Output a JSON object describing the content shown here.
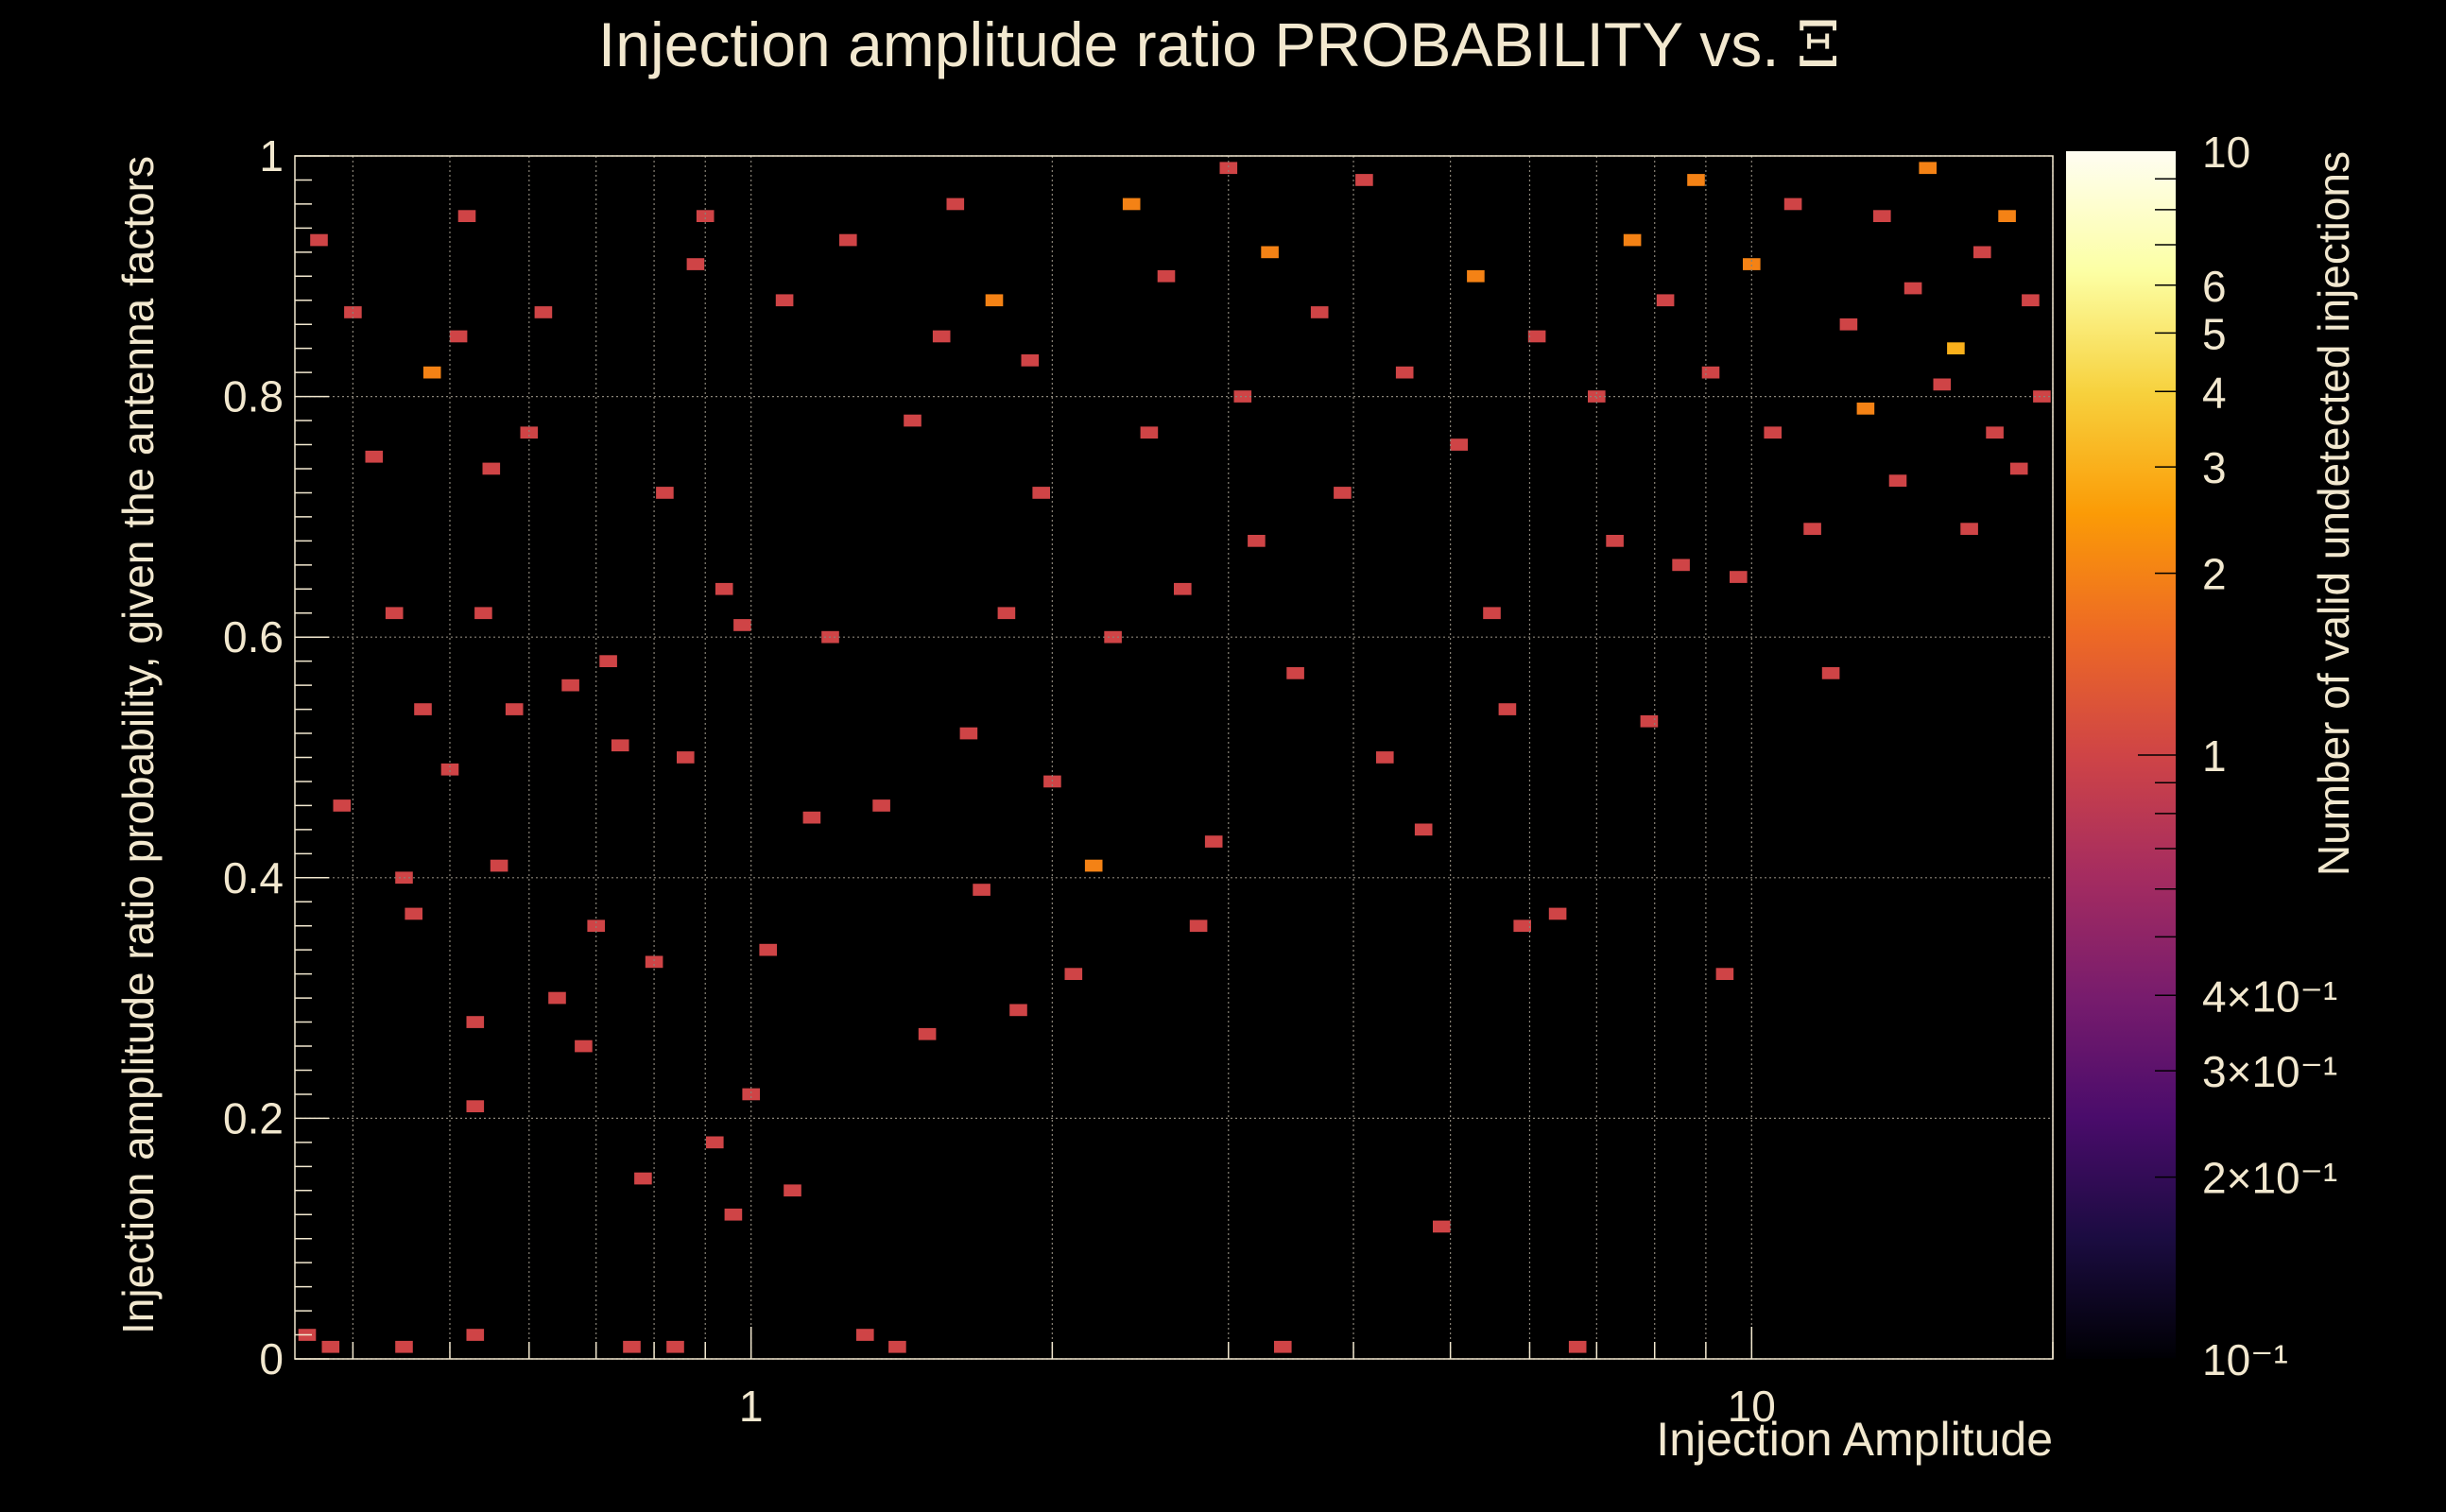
{
  "chart_data": {
    "type": "heatmap",
    "title": "Injection amplitude ratio PROBABILITY vs.",
    "title_symbol": "Ξ",
    "xlabel": "Injection Amplitude",
    "ylabel": "Injection amplitude ratio probability, given the antenna factors",
    "zlabel": "Number of valid undetected injections",
    "x_scale": "log",
    "xlim": [
      0.35,
      20
    ],
    "ylim": [
      0,
      1
    ],
    "zlim": [
      0.1,
      10
    ],
    "x_bins": 100,
    "y_bins": 100,
    "grid": true,
    "x_tick_labels": [
      {
        "value": 1,
        "label": "1"
      },
      {
        "value": 10,
        "label": "10"
      }
    ],
    "y_tick_labels": [
      {
        "value": 0,
        "label": "0"
      },
      {
        "value": 0.2,
        "label": "0.2"
      },
      {
        "value": 0.4,
        "label": "0.4"
      },
      {
        "value": 0.6,
        "label": "0.6"
      },
      {
        "value": 0.8,
        "label": "0.8"
      },
      {
        "value": 1,
        "label": "1"
      }
    ],
    "z_tick_labels": [
      {
        "value": 10,
        "label": "10"
      },
      {
        "value": 6,
        "label": "6"
      },
      {
        "value": 5,
        "label": "5"
      },
      {
        "value": 4,
        "label": "4"
      },
      {
        "value": 3,
        "label": "3"
      },
      {
        "value": 2,
        "label": "2"
      },
      {
        "value": 1,
        "label": "1"
      },
      {
        "value": 0.4,
        "label": "4×10⁻¹"
      },
      {
        "value": 0.3,
        "label": "3×10⁻¹"
      },
      {
        "value": 0.2,
        "label": "2×10⁻¹"
      },
      {
        "value": 0.1,
        "label": "10⁻¹"
      }
    ],
    "colormap": [
      "#000004",
      "#1b0c41",
      "#4a0c6b",
      "#781c6d",
      "#a52c60",
      "#cf4446",
      "#ed6925",
      "#fb9b06",
      "#f7d13d",
      "#fcffa4",
      "#fffdf2"
    ],
    "cells": [
      [
        0.36,
        0.02,
        1
      ],
      [
        0.38,
        0.01,
        1
      ],
      [
        0.39,
        0.46,
        1
      ],
      [
        0.37,
        0.93,
        1
      ],
      [
        0.4,
        0.87,
        1
      ],
      [
        0.42,
        0.75,
        1
      ],
      [
        0.44,
        0.62,
        1
      ],
      [
        0.45,
        0.01,
        1
      ],
      [
        0.45,
        0.4,
        1
      ],
      [
        0.46,
        0.37,
        1
      ],
      [
        0.47,
        0.54,
        1
      ],
      [
        0.48,
        0.82,
        2
      ],
      [
        0.5,
        0.49,
        1
      ],
      [
        0.51,
        0.85,
        1
      ],
      [
        0.52,
        0.95,
        1
      ],
      [
        0.53,
        0.02,
        1
      ],
      [
        0.53,
        0.28,
        1
      ],
      [
        0.53,
        0.21,
        1
      ],
      [
        0.54,
        0.62,
        1
      ],
      [
        0.55,
        0.74,
        1
      ],
      [
        0.56,
        0.41,
        1
      ],
      [
        0.58,
        0.54,
        1
      ],
      [
        0.6,
        0.77,
        1
      ],
      [
        0.62,
        0.87,
        1
      ],
      [
        0.64,
        0.3,
        1
      ],
      [
        0.66,
        0.56,
        1
      ],
      [
        0.68,
        0.26,
        1
      ],
      [
        0.7,
        0.36,
        1
      ],
      [
        0.72,
        0.58,
        1
      ],
      [
        0.74,
        0.51,
        1
      ],
      [
        0.76,
        0.01,
        1
      ],
      [
        0.78,
        0.15,
        1
      ],
      [
        0.8,
        0.33,
        1
      ],
      [
        0.82,
        0.72,
        1
      ],
      [
        0.84,
        0.01,
        1
      ],
      [
        0.86,
        0.5,
        1
      ],
      [
        0.88,
        0.91,
        1
      ],
      [
        0.9,
        0.95,
        1
      ],
      [
        0.92,
        0.18,
        1
      ],
      [
        0.94,
        0.64,
        1
      ],
      [
        0.96,
        0.12,
        1
      ],
      [
        0.98,
        0.61,
        1
      ],
      [
        1.0,
        0.22,
        1
      ],
      [
        1.04,
        0.34,
        1
      ],
      [
        1.08,
        0.88,
        1
      ],
      [
        1.1,
        0.14,
        1
      ],
      [
        1.15,
        0.45,
        1
      ],
      [
        1.2,
        0.6,
        1
      ],
      [
        1.25,
        0.93,
        1
      ],
      [
        1.3,
        0.02,
        1
      ],
      [
        1.35,
        0.46,
        1
      ],
      [
        1.4,
        0.01,
        1
      ],
      [
        1.45,
        0.78,
        1
      ],
      [
        1.5,
        0.27,
        1
      ],
      [
        1.55,
        0.85,
        1
      ],
      [
        1.6,
        0.96,
        1
      ],
      [
        1.65,
        0.52,
        1
      ],
      [
        1.7,
        0.39,
        1
      ],
      [
        1.75,
        0.88,
        2
      ],
      [
        1.8,
        0.62,
        1
      ],
      [
        1.85,
        0.29,
        1
      ],
      [
        1.9,
        0.83,
        1
      ],
      [
        1.95,
        0.72,
        1
      ],
      [
        2.0,
        0.48,
        1
      ],
      [
        2.1,
        0.32,
        1
      ],
      [
        2.2,
        0.41,
        2
      ],
      [
        2.3,
        0.6,
        1
      ],
      [
        2.4,
        0.96,
        2
      ],
      [
        2.5,
        0.77,
        1
      ],
      [
        2.6,
        0.9,
        1
      ],
      [
        2.7,
        0.64,
        1
      ],
      [
        2.8,
        0.36,
        1
      ],
      [
        2.9,
        0.43,
        1
      ],
      [
        3.0,
        0.99,
        1
      ],
      [
        3.1,
        0.8,
        1
      ],
      [
        3.2,
        0.68,
        1
      ],
      [
        3.3,
        0.92,
        2
      ],
      [
        3.4,
        0.01,
        1
      ],
      [
        3.5,
        0.57,
        1
      ],
      [
        3.7,
        0.87,
        1
      ],
      [
        3.9,
        0.72,
        1
      ],
      [
        4.1,
        0.98,
        1
      ],
      [
        4.3,
        0.5,
        1
      ],
      [
        4.5,
        0.82,
        1
      ],
      [
        4.7,
        0.44,
        1
      ],
      [
        4.9,
        0.11,
        1
      ],
      [
        5.1,
        0.76,
        1
      ],
      [
        5.3,
        0.9,
        2
      ],
      [
        5.5,
        0.62,
        1
      ],
      [
        5.7,
        0.54,
        1
      ],
      [
        5.9,
        0.36,
        1
      ],
      [
        6.1,
        0.85,
        1
      ],
      [
        6.4,
        0.37,
        1
      ],
      [
        6.7,
        0.01,
        1
      ],
      [
        7.0,
        0.8,
        1
      ],
      [
        7.3,
        0.68,
        1
      ],
      [
        7.6,
        0.93,
        2
      ],
      [
        7.9,
        0.53,
        1
      ],
      [
        8.2,
        0.88,
        1
      ],
      [
        8.5,
        0.66,
        1
      ],
      [
        8.8,
        0.98,
        2
      ],
      [
        9.1,
        0.82,
        1
      ],
      [
        9.4,
        0.32,
        1
      ],
      [
        9.7,
        0.65,
        1
      ],
      [
        10.0,
        0.91,
        2
      ],
      [
        10.5,
        0.77,
        1
      ],
      [
        11.0,
        0.96,
        1
      ],
      [
        11.5,
        0.69,
        1
      ],
      [
        12.0,
        0.57,
        1
      ],
      [
        12.5,
        0.86,
        1
      ],
      [
        13.0,
        0.79,
        2
      ],
      [
        13.5,
        0.95,
        1
      ],
      [
        14.0,
        0.73,
        1
      ],
      [
        14.5,
        0.89,
        1
      ],
      [
        15.0,
        0.99,
        2
      ],
      [
        15.5,
        0.81,
        1
      ],
      [
        16.0,
        0.84,
        3
      ],
      [
        16.5,
        0.69,
        1
      ],
      [
        17.0,
        0.92,
        1
      ],
      [
        17.5,
        0.77,
        1
      ],
      [
        18.0,
        0.95,
        2
      ],
      [
        18.5,
        0.74,
        1
      ],
      [
        19.0,
        0.88,
        1
      ],
      [
        19.5,
        0.8,
        1
      ]
    ]
  }
}
